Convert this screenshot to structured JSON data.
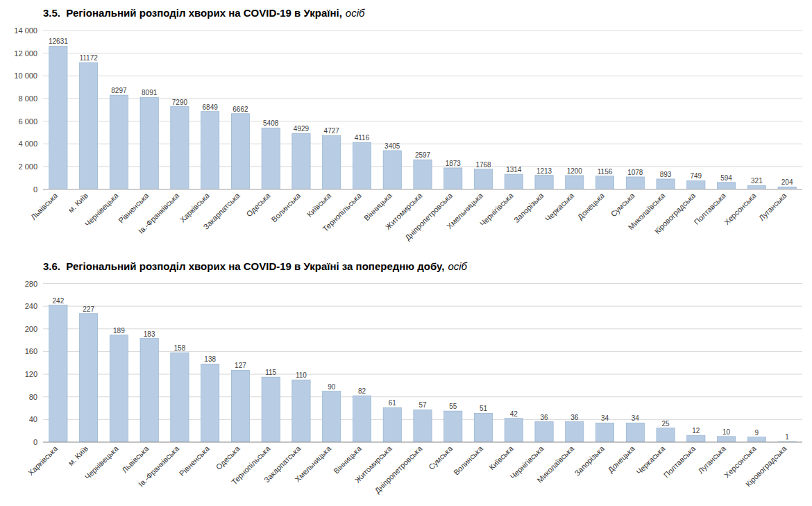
{
  "chart_data": [
    {
      "type": "bar",
      "title": "3.5.  Регіональний розподіл хворих на COVID-19 в Україні,",
      "subtitle": "осіб",
      "categories": [
        "Львівська",
        "м. Київ",
        "Чернівецька",
        "Рівненська",
        "Ів.-Франківська",
        "Харківська",
        "Закарпатська",
        "Одеська",
        "Волинська",
        "Київська",
        "Тернопільська",
        "Вінницька",
        "Житомирська",
        "Дніпропетровська",
        "Хмельницька",
        "Чернігівська",
        "Запорізька",
        "Черкаська",
        "Донецька",
        "Сумська",
        "Миколаївська",
        "Кіровоградська",
        "Полтавська",
        "Херсонська",
        "Луганська"
      ],
      "values": [
        12631,
        11172,
        8297,
        8091,
        7290,
        6849,
        6662,
        5408,
        4929,
        4727,
        4116,
        3405,
        2597,
        1873,
        1768,
        1314,
        1213,
        1200,
        1156,
        1078,
        893,
        749,
        594,
        321,
        204
      ],
      "color": "#b8cce4",
      "ylim": [
        0,
        14000
      ],
      "yticks": [
        0,
        {
          "value": 2000,
          "label": "2 000"
        },
        {
          "value": 4000,
          "label": "4 000"
        },
        {
          "value": 6000,
          "label": "6 000"
        },
        {
          "value": 8000,
          "label": "8 000"
        },
        {
          "value": 10000,
          "label": "10 000"
        },
        {
          "value": 12000,
          "label": "12 000"
        },
        {
          "value": 14000,
          "label": "14 000"
        }
      ],
      "grid": true,
      "data_labels": true
    },
    {
      "type": "bar",
      "title": "3.6.  Регіональний розподіл хворих на COVID-19 в Україні за попередню добу,",
      "subtitle": "осіб",
      "categories": [
        "Харківська",
        "м. Київ",
        "Чернівецька",
        "Львівська",
        "Ів.-Франківська",
        "Рівненська",
        "Одеська",
        "Тернопільська",
        "Закарпатська",
        "Хмельницька",
        "Вінницька",
        "Житомирська",
        "Дніпропетровська",
        "Сумська",
        "Волинська",
        "Київська",
        "Чернігівська",
        "Миколаївська",
        "Запорізька",
        "Донецька",
        "Черкаська",
        "Полтавська",
        "Луганська",
        "Херсонська",
        "Кіровоградська"
      ],
      "values": [
        242,
        227,
        189,
        183,
        158,
        138,
        127,
        115,
        110,
        90,
        82,
        61,
        57,
        55,
        51,
        42,
        36,
        36,
        34,
        34,
        25,
        12,
        10,
        9,
        1
      ],
      "color": "#b8cce4",
      "ylim": [
        0,
        280
      ],
      "yticks": [
        0,
        40,
        80,
        120,
        160,
        200,
        240,
        280
      ],
      "grid": true,
      "data_labels": true
    }
  ]
}
